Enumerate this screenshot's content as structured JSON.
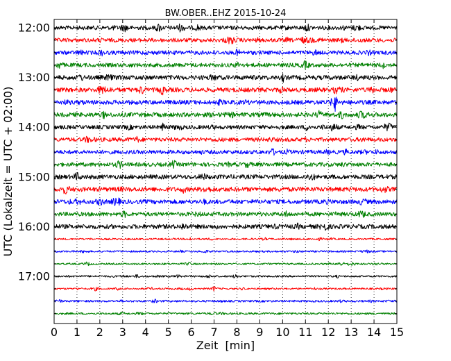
{
  "chart_data": {
    "type": "line",
    "title": "BW.OBER..EHZ 2015-10-24",
    "xlabel": "Zeit  [min]",
    "ylabel": "UTC (Lokalzeit = UTC + 02:00)",
    "xlim": [
      0,
      15
    ],
    "x_ticks": [
      "0",
      "1",
      "2",
      "3",
      "4",
      "5",
      "6",
      "7",
      "8",
      "9",
      "10",
      "11",
      "12",
      "13",
      "14",
      "15"
    ],
    "y_tick_labels": [
      "12:00",
      "13:00",
      "14:00",
      "15:00",
      "16:00",
      "17:00"
    ],
    "rows_per_hour": 4,
    "row_minutes": 15,
    "grid": "vertical dotted at each minute",
    "series": [
      {
        "start": "12:00",
        "color": "#000000",
        "amplitude": 0.9
      },
      {
        "start": "12:15",
        "color": "#ff0000",
        "amplitude": 0.9
      },
      {
        "start": "12:30",
        "color": "#0000ff",
        "amplitude": 0.9
      },
      {
        "start": "12:45",
        "color": "#008000",
        "amplitude": 0.9
      },
      {
        "start": "13:00",
        "color": "#000000",
        "amplitude": 1.0
      },
      {
        "start": "13:15",
        "color": "#ff0000",
        "amplitude": 1.0
      },
      {
        "start": "13:30",
        "color": "#0000ff",
        "amplitude": 1.0
      },
      {
        "start": "13:45",
        "color": "#008000",
        "amplitude": 1.0
      },
      {
        "start": "14:00",
        "color": "#000000",
        "amplitude": 0.9
      },
      {
        "start": "14:15",
        "color": "#ff0000",
        "amplitude": 0.9
      },
      {
        "start": "14:30",
        "color": "#0000ff",
        "amplitude": 0.9
      },
      {
        "start": "14:45",
        "color": "#008000",
        "amplitude": 0.9
      },
      {
        "start": "15:00",
        "color": "#000000",
        "amplitude": 1.0
      },
      {
        "start": "15:15",
        "color": "#ff0000",
        "amplitude": 1.0
      },
      {
        "start": "15:30",
        "color": "#0000ff",
        "amplitude": 1.0
      },
      {
        "start": "15:45",
        "color": "#008000",
        "amplitude": 0.9
      },
      {
        "start": "16:00",
        "color": "#000000",
        "amplitude": 1.0
      },
      {
        "start": "16:15",
        "color": "#ff0000",
        "amplitude": 0.4
      },
      {
        "start": "16:30",
        "color": "#0000ff",
        "amplitude": 0.4
      },
      {
        "start": "16:45",
        "color": "#008000",
        "amplitude": 0.4
      },
      {
        "start": "17:00",
        "color": "#000000",
        "amplitude": 0.4
      },
      {
        "start": "17:15",
        "color": "#ff0000",
        "amplitude": 0.4
      },
      {
        "start": "17:30",
        "color": "#0000ff",
        "amplitude": 0.45
      },
      {
        "start": "17:45",
        "color": "#008000",
        "amplitude": 0.45
      }
    ]
  }
}
